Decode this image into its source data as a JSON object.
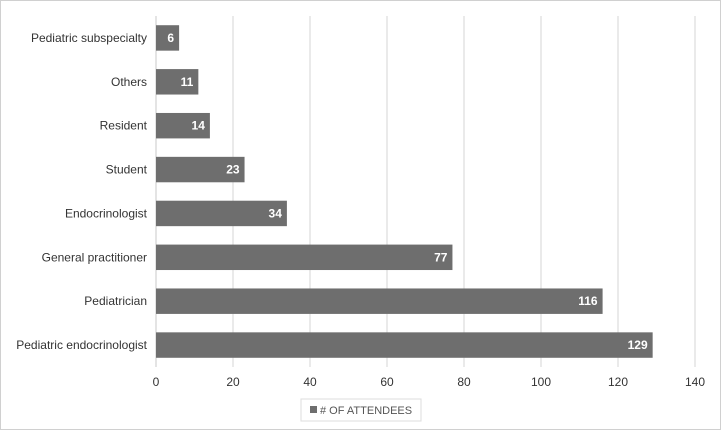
{
  "chart_data": {
    "type": "bar",
    "orientation": "horizontal",
    "categories": [
      "Pediatric subspecialty",
      "Others",
      "Resident",
      "Student",
      "Endocrinologist",
      "General practitioner",
      "Pediatrician",
      "Pediatric endocrinologist"
    ],
    "series": [
      {
        "name": "# OF ATTENDEES",
        "values": [
          6,
          11,
          14,
          23,
          34,
          77,
          116,
          129
        ]
      }
    ],
    "xlim": [
      0,
      140
    ],
    "x_ticks": [
      "0",
      "20",
      "40",
      "60",
      "80",
      "100",
      "120",
      "140"
    ],
    "grid": true,
    "legend_position": "bottom-center",
    "bar_color": "#6e6e6e",
    "grid_color": "#d4d4d4"
  }
}
